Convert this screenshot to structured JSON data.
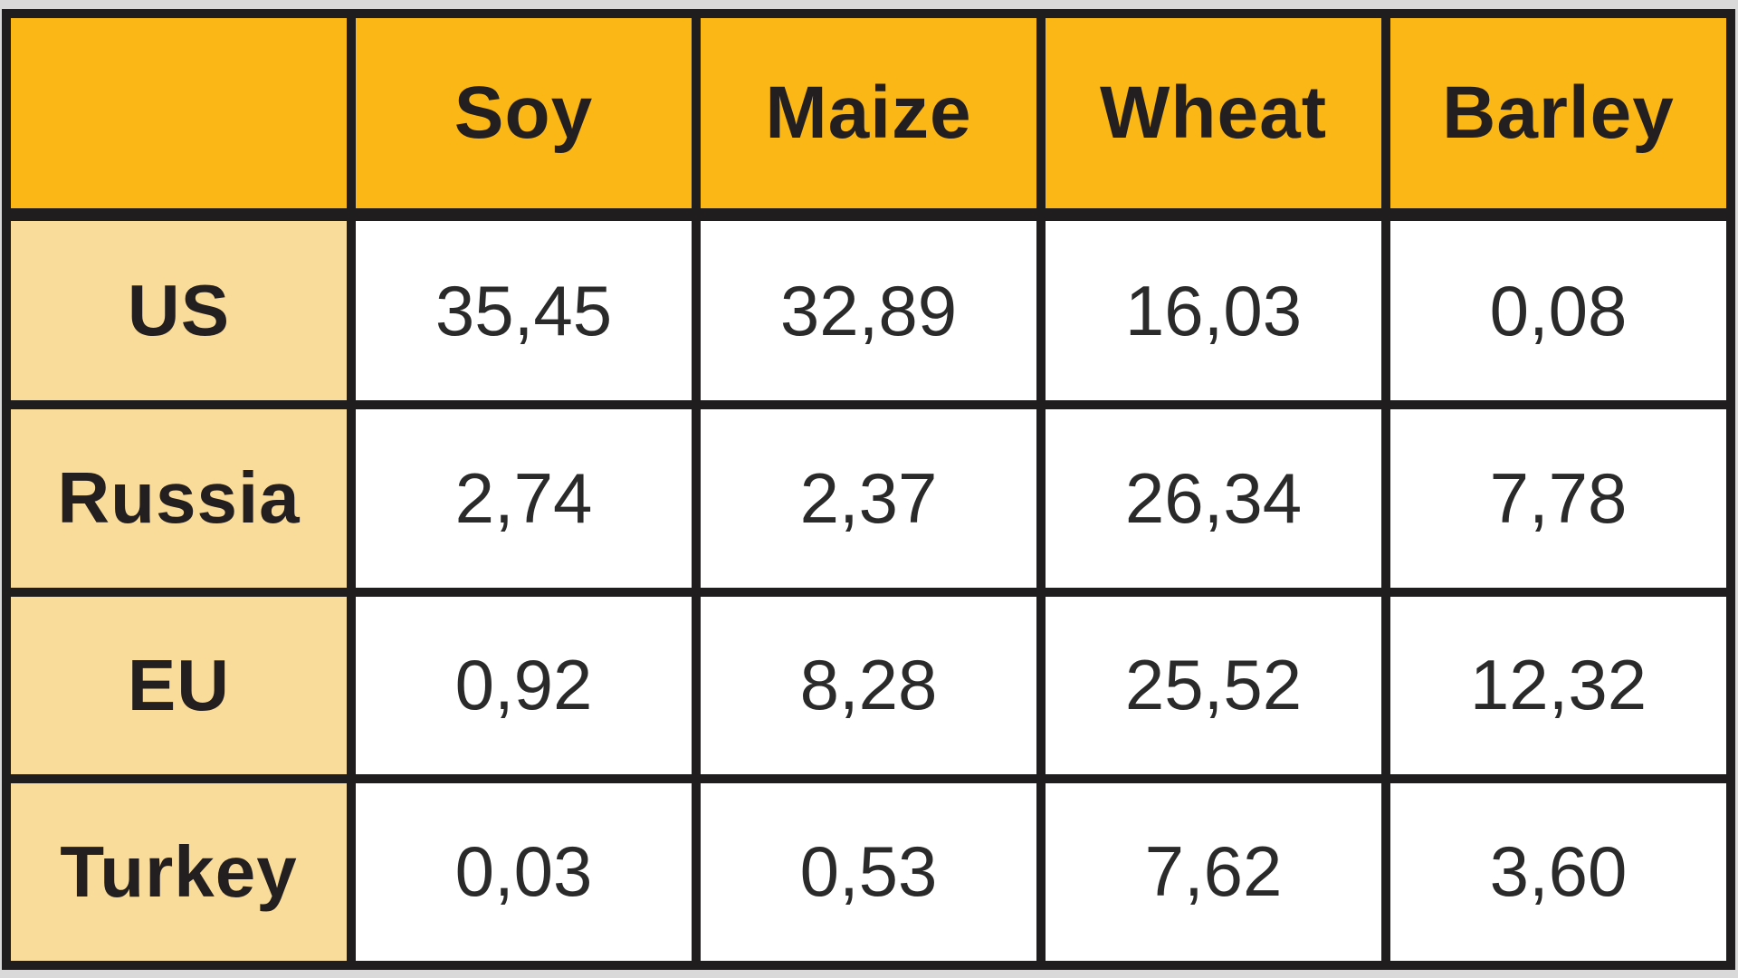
{
  "table": {
    "corner_label": "",
    "columns": [
      "Soy",
      "Maize",
      "Wheat",
      "Barley"
    ],
    "rows": [
      {
        "label": "US",
        "values": [
          "35,45",
          "32,89",
          "16,03",
          "0,08"
        ]
      },
      {
        "label": "Russia",
        "values": [
          "2,74",
          "2,37",
          "26,34",
          "7,78"
        ]
      },
      {
        "label": "EU",
        "values": [
          "0,92",
          "8,28",
          "25,52",
          "12,32"
        ]
      },
      {
        "label": "Turkey",
        "values": [
          "0,03",
          "0,53",
          "7,62",
          "3,60"
        ]
      }
    ]
  },
  "colors": {
    "header_bg": "#fbb715",
    "row_label_bg": "#fadc9a",
    "cell_bg": "#ffffff",
    "border": "#201d1e",
    "text": "#231f20",
    "page_margin_bg": "#d9d9d9"
  },
  "chart_data": {
    "type": "table",
    "title": "",
    "columns": [
      "Soy",
      "Maize",
      "Wheat",
      "Barley"
    ],
    "row_labels": [
      "US",
      "Russia",
      "EU",
      "Turkey"
    ],
    "values": [
      [
        35.45,
        32.89,
        16.03,
        0.08
      ],
      [
        2.74,
        2.37,
        26.34,
        7.78
      ],
      [
        0.92,
        8.28,
        25.52,
        12.32
      ],
      [
        0.03,
        0.53,
        7.62,
        3.6
      ]
    ],
    "value_format": "comma-decimal",
    "notes": "Header row amber, row-label column cream, values white cells, heavy dark grid lines"
  }
}
